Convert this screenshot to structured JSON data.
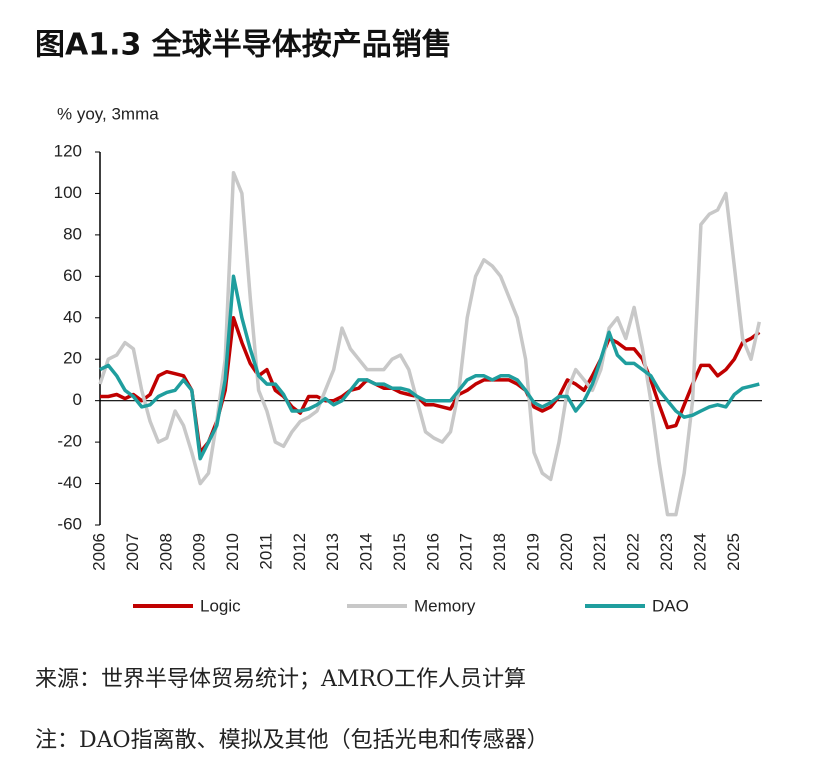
{
  "chart_data": {
    "type": "line",
    "title": "图A1.3 全球半导体按产品销售",
    "ylabel": "% yoy, 3mma",
    "x": [
      2006,
      2006.25,
      2006.5,
      2006.75,
      2007,
      2007.25,
      2007.5,
      2007.75,
      2008,
      2008.25,
      2008.5,
      2008.75,
      2009,
      2009.25,
      2009.5,
      2009.75,
      2010,
      2010.25,
      2010.5,
      2010.75,
      2011,
      2011.25,
      2011.5,
      2011.75,
      2012,
      2012.25,
      2012.5,
      2012.75,
      2013,
      2013.25,
      2013.5,
      2013.75,
      2014,
      2014.25,
      2014.5,
      2014.75,
      2015,
      2015.25,
      2015.5,
      2015.75,
      2016,
      2016.25,
      2016.5,
      2016.75,
      2017,
      2017.25,
      2017.5,
      2017.75,
      2018,
      2018.25,
      2018.5,
      2018.75,
      2019,
      2019.25,
      2019.5,
      2019.75,
      2020,
      2020.25,
      2020.5,
      2020.75,
      2021,
      2021.25,
      2021.5,
      2021.75,
      2022,
      2022.25,
      2022.5,
      2022.75,
      2023,
      2023.25,
      2023.5,
      2023.75,
      2024,
      2024.25,
      2024.5,
      2024.75,
      2025,
      2025.25,
      2025.5,
      2025.75
    ],
    "series": [
      {
        "name": "Logic",
        "color": "#c00000",
        "values": [
          2,
          2,
          3,
          1,
          3,
          0,
          3,
          12,
          14,
          13,
          12,
          5,
          -25,
          -20,
          -10,
          5,
          40,
          28,
          18,
          12,
          15,
          5,
          2,
          -3,
          -6,
          2,
          2,
          0,
          0,
          2,
          5,
          6,
          10,
          8,
          6,
          6,
          4,
          3,
          2,
          -2,
          -2,
          -3,
          -4,
          3,
          5,
          8,
          10,
          10,
          10,
          10,
          8,
          5,
          -3,
          -5,
          -3,
          2,
          10,
          8,
          5,
          12,
          20,
          30,
          28,
          25,
          25,
          20,
          10,
          -2,
          -13,
          -12,
          -2,
          8,
          17,
          17,
          12,
          15,
          20,
          28,
          30,
          33
        ]
      },
      {
        "name": "Memory",
        "color": "#c8c8c8",
        "values": [
          8,
          20,
          22,
          28,
          25,
          5,
          -10,
          -20,
          -18,
          -5,
          -12,
          -25,
          -40,
          -35,
          -10,
          20,
          110,
          100,
          50,
          5,
          -5,
          -20,
          -22,
          -15,
          -10,
          -8,
          -5,
          5,
          15,
          35,
          25,
          20,
          15,
          15,
          15,
          20,
          22,
          15,
          0,
          -15,
          -18,
          -20,
          -15,
          5,
          40,
          60,
          68,
          65,
          60,
          50,
          40,
          20,
          -25,
          -35,
          -38,
          -20,
          5,
          15,
          10,
          5,
          15,
          35,
          40,
          30,
          45,
          25,
          0,
          -30,
          -55,
          -55,
          -35,
          0,
          85,
          90,
          92,
          100,
          65,
          30,
          20,
          38
        ]
      },
      {
        "name": "DAO",
        "color": "#1f9e9e",
        "values": [
          15,
          17,
          12,
          5,
          2,
          -3,
          -2,
          2,
          4,
          5,
          10,
          5,
          -28,
          -20,
          -12,
          10,
          60,
          40,
          25,
          12,
          8,
          8,
          3,
          -5,
          -5,
          -4,
          -2,
          1,
          -2,
          0,
          5,
          10,
          10,
          8,
          8,
          6,
          6,
          5,
          2,
          0,
          0,
          0,
          0,
          5,
          10,
          12,
          12,
          10,
          12,
          12,
          10,
          5,
          -1,
          -3,
          -1,
          2,
          2,
          -5,
          0,
          8,
          20,
          33,
          22,
          18,
          18,
          15,
          12,
          5,
          0,
          -5,
          -8,
          -7,
          -5,
          -3,
          -2,
          -3,
          3,
          6,
          7,
          8
        ]
      }
    ],
    "xlim": [
      2006,
      2025.83
    ],
    "xticks": [
      2006,
      2007,
      2008,
      2009,
      2010,
      2011,
      2012,
      2013,
      2014,
      2015,
      2016,
      2017,
      2018,
      2019,
      2020,
      2021,
      2022,
      2023,
      2024,
      2025
    ],
    "ylim": [
      -60,
      120
    ],
    "yticks": [
      -60,
      -40,
      -20,
      0,
      20,
      40,
      60,
      80,
      100,
      120
    ],
    "grid": false
  },
  "source": "来源：世界半导体贸易统计；AMRO工作人员计算",
  "note": "注：DAO指离散、模拟及其他（包括光电和传感器）"
}
